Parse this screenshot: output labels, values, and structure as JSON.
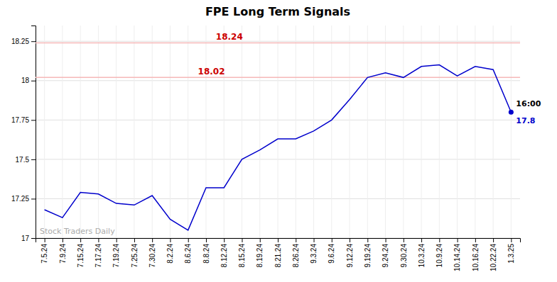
{
  "chart_data": {
    "type": "line",
    "title": "FPE Long Term Signals",
    "categories": [
      "7.5.24",
      "7.9.24",
      "7.15.24",
      "7.17.24",
      "7.19.24",
      "7.25.24",
      "7.30.24",
      "8.2.24",
      "8.6.24",
      "8.8.24",
      "8.12.24",
      "8.15.24",
      "8.19.24",
      "8.21.24",
      "8.26.24",
      "9.3.24",
      "9.6.24",
      "9.12.24",
      "9.19.24",
      "9.24.24",
      "9.30.24",
      "10.3.24",
      "10.9.24",
      "10.14.24",
      "10.16.24",
      "10.22.24",
      "1.3.25"
    ],
    "values": [
      17.18,
      17.13,
      17.29,
      17.28,
      17.22,
      17.21,
      17.27,
      17.12,
      17.05,
      17.32,
      17.32,
      17.5,
      17.56,
      17.63,
      17.63,
      17.68,
      17.75,
      17.88,
      18.02,
      18.05,
      18.02,
      18.09,
      18.1,
      18.03,
      18.09,
      18.07,
      17.8
    ],
    "color": "#0000cc",
    "ylim": [
      17.0,
      18.35
    ],
    "yticks": [
      17,
      17.25,
      17.5,
      17.75,
      18,
      18.25
    ],
    "grid": true,
    "reference_lines": [
      {
        "value": 18.24,
        "label": "18.24",
        "color": "#f5b8b8",
        "label_color": "#cc0000"
      },
      {
        "value": 18.02,
        "label": "18.02",
        "color": "#f5b8b8",
        "label_color": "#cc0000"
      }
    ],
    "annotations": [
      {
        "text": "16:00",
        "color": "#000000"
      },
      {
        "text": "17.8",
        "color": "#0000cc"
      }
    ],
    "watermark": "Stock Traders Daily"
  }
}
